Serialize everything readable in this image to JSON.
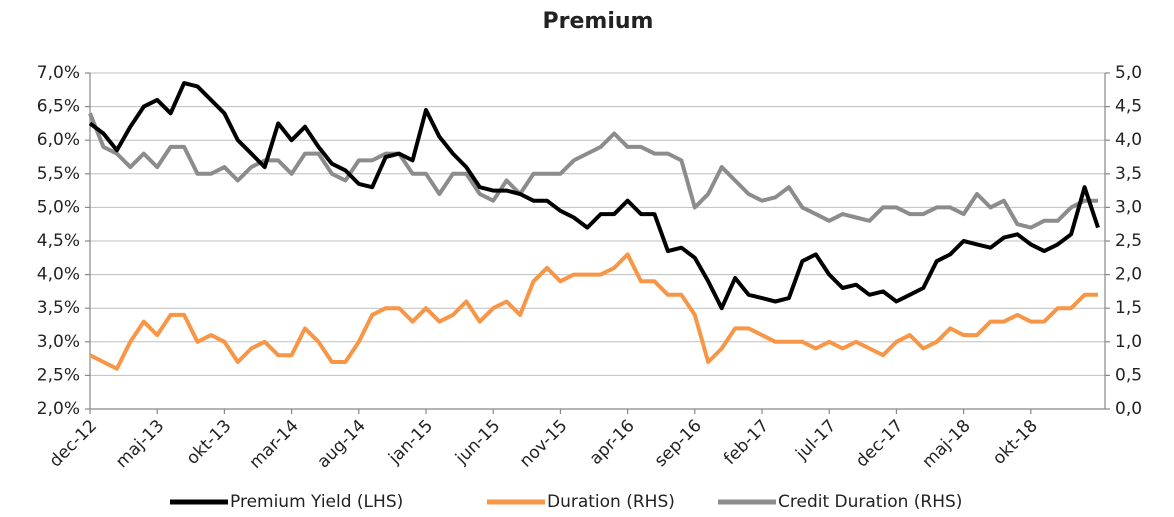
{
  "chart_data": {
    "type": "line",
    "title": "Premium",
    "categories": [
      "dec-12",
      null,
      null,
      null,
      null,
      "maj-13",
      null,
      null,
      null,
      null,
      "okt-13",
      null,
      null,
      null,
      null,
      "mar-14",
      null,
      null,
      null,
      null,
      "aug-14",
      null,
      null,
      null,
      null,
      "jan-15",
      null,
      null,
      null,
      null,
      "jun-15",
      null,
      null,
      null,
      null,
      "nov-15",
      null,
      null,
      null,
      null,
      "apr-16",
      null,
      null,
      null,
      null,
      "sep-16",
      null,
      null,
      null,
      null,
      "feb-17",
      null,
      null,
      null,
      null,
      "jul-17",
      null,
      null,
      null,
      null,
      "dec-17",
      null,
      null,
      null,
      null,
      "maj-18",
      null,
      null,
      null,
      null,
      "okt-18",
      null,
      null,
      null,
      null,
      null
    ],
    "series": [
      {
        "name": "Premium Yield (LHS)",
        "color": "#000000",
        "axis": "y",
        "values": [
          6.25,
          6.1,
          5.85,
          6.2,
          6.5,
          6.6,
          6.4,
          6.85,
          6.8,
          6.6,
          6.4,
          6.0,
          5.8,
          5.6,
          6.25,
          6.0,
          6.2,
          5.9,
          5.65,
          5.55,
          5.35,
          5.3,
          5.75,
          5.8,
          5.7,
          6.45,
          6.05,
          5.8,
          5.6,
          5.3,
          5.25,
          5.25,
          5.2,
          5.1,
          5.1,
          4.95,
          4.85,
          4.7,
          4.9,
          4.9,
          5.1,
          4.9,
          4.9,
          4.35,
          4.4,
          4.25,
          3.9,
          3.5,
          3.95,
          3.7,
          3.65,
          3.6,
          3.65,
          4.2,
          4.3,
          4.0,
          3.8,
          3.85,
          3.7,
          3.75,
          3.6,
          3.7,
          3.8,
          4.2,
          4.3,
          4.5,
          4.45,
          4.4,
          4.55,
          4.6,
          4.45,
          4.35,
          4.45,
          4.6,
          5.3,
          4.7
        ]
      },
      {
        "name": "Duration (RHS)",
        "color": "#f79646",
        "axis": "y2",
        "values": [
          0.8,
          0.7,
          0.6,
          1.0,
          1.3,
          1.1,
          1.4,
          1.4,
          1.0,
          1.1,
          1.0,
          0.7,
          0.9,
          1.0,
          0.8,
          0.8,
          1.2,
          1.0,
          0.7,
          0.7,
          1.0,
          1.4,
          1.5,
          1.5,
          1.3,
          1.5,
          1.3,
          1.4,
          1.6,
          1.3,
          1.5,
          1.6,
          1.4,
          1.9,
          2.1,
          1.9,
          2.0,
          2.0,
          2.0,
          2.1,
          2.3,
          1.9,
          1.9,
          1.7,
          1.7,
          1.4,
          0.7,
          0.9,
          1.2,
          1.2,
          1.1,
          1.0,
          1.0,
          1.0,
          0.9,
          1.0,
          0.9,
          1.0,
          0.9,
          0.8,
          1.0,
          1.1,
          0.9,
          1.0,
          1.2,
          1.1,
          1.1,
          1.3,
          1.3,
          1.4,
          1.3,
          1.3,
          1.5,
          1.5,
          1.7,
          1.7
        ]
      },
      {
        "name": "Credit Duration (RHS)",
        "color": "#8c8c8c",
        "axis": "y2",
        "values": [
          4.4,
          3.9,
          3.8,
          3.6,
          3.8,
          3.6,
          3.9,
          3.9,
          3.5,
          3.5,
          3.6,
          3.4,
          3.6,
          3.7,
          3.7,
          3.5,
          3.8,
          3.8,
          3.5,
          3.4,
          3.7,
          3.7,
          3.8,
          3.8,
          3.5,
          3.5,
          3.2,
          3.5,
          3.5,
          3.2,
          3.1,
          3.4,
          3.2,
          3.5,
          3.5,
          3.5,
          3.7,
          3.8,
          3.9,
          4.1,
          3.9,
          3.9,
          3.8,
          3.8,
          3.7,
          3.0,
          3.2,
          3.6,
          3.4,
          3.2,
          3.1,
          3.15,
          3.3,
          3.0,
          2.9,
          2.8,
          2.9,
          2.85,
          2.8,
          3.0,
          3.0,
          2.9,
          2.9,
          3.0,
          3.0,
          2.9,
          3.2,
          3.0,
          3.1,
          2.75,
          2.7,
          2.8,
          2.8,
          3.0,
          3.1,
          3.1
        ]
      }
    ],
    "ylim": [
      2.0,
      7.0
    ],
    "yticks": [
      {
        "value": 2.0,
        "label": "2,0%"
      },
      {
        "value": 2.5,
        "label": "2,5%"
      },
      {
        "value": 3.0,
        "label": "3,0%"
      },
      {
        "value": 3.5,
        "label": "3,5%"
      },
      {
        "value": 4.0,
        "label": "4,0%"
      },
      {
        "value": 4.5,
        "label": "4,5%"
      },
      {
        "value": 5.0,
        "label": "5,0%"
      },
      {
        "value": 5.5,
        "label": "5,5%"
      },
      {
        "value": 6.0,
        "label": "6,0%"
      },
      {
        "value": 6.5,
        "label": "6,5%"
      },
      {
        "value": 7.0,
        "label": "7,0%"
      }
    ],
    "y2lim": [
      0.0,
      5.0
    ],
    "y2ticks": [
      {
        "value": 0.0,
        "label": "0,0"
      },
      {
        "value": 0.5,
        "label": "0,5"
      },
      {
        "value": 1.0,
        "label": "1,0"
      },
      {
        "value": 1.5,
        "label": "1,5"
      },
      {
        "value": 2.0,
        "label": "2,0"
      },
      {
        "value": 2.5,
        "label": "2,5"
      },
      {
        "value": 3.0,
        "label": "3,0"
      },
      {
        "value": 3.5,
        "label": "3,5"
      },
      {
        "value": 4.0,
        "label": "4,0"
      },
      {
        "value": 4.5,
        "label": "4,5"
      },
      {
        "value": 5.0,
        "label": "5,0"
      }
    ],
    "grid": true,
    "legend": "bottom"
  }
}
